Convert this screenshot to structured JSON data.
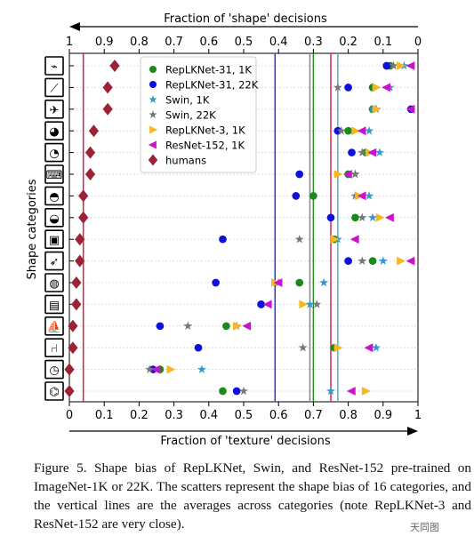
{
  "chart_data": {
    "type": "scatter",
    "top_axis_label": "Fraction of 'shape' decisions",
    "bottom_axis_label": "Fraction of 'texture' decisions",
    "ylabel": "Shape categories",
    "xlim": [
      0,
      1
    ],
    "top_ticks": [
      "1",
      "0.9",
      "0.8",
      "0.7",
      "0.6",
      "0.5",
      "0.4",
      "0.3",
      "0.2",
      "0.1",
      "0"
    ],
    "bottom_ticks": [
      "0",
      "0.1",
      "0.2",
      "0.3",
      "0.4",
      "0.5",
      "0.6",
      "0.7",
      "0.8",
      "0.9",
      "1"
    ],
    "categories": [
      "knife",
      "bottle",
      "airplane",
      "bear",
      "dog",
      "keyboard",
      "cat",
      "elephant",
      "oven",
      "bird",
      "car",
      "truck",
      "boat",
      "chair",
      "clock",
      "bicycle"
    ],
    "legend_position": "upper-center",
    "series": [
      {
        "name": "RepLKNet-31, 1K",
        "marker": "circle",
        "color": "#1a8a1a",
        "values": [
          0.92,
          0.87,
          0.87,
          0.8,
          0.85,
          0.8,
          0.7,
          0.82,
          0.76,
          0.87,
          0.66,
          0.55,
          0.45,
          0.76,
          0.26,
          0.44
        ]
      },
      {
        "name": "RepLKNet-31, 22K",
        "marker": "circle",
        "color": "#1010dd",
        "values": [
          0.91,
          0.8,
          0.98,
          0.77,
          0.81,
          0.66,
          0.65,
          0.75,
          0.44,
          0.8,
          0.42,
          0.55,
          0.26,
          0.37,
          0.24,
          0.48
        ]
      },
      {
        "name": "Swin, 1K",
        "marker": "star",
        "color": "#3399cc",
        "values": [
          0.96,
          0.92,
          0.87,
          0.86,
          0.89,
          0.82,
          0.86,
          0.87,
          0.77,
          0.9,
          0.73,
          0.69,
          0.48,
          0.88,
          0.38,
          0.75
        ]
      },
      {
        "name": "Swin, 22K",
        "marker": "star",
        "color": "#777777",
        "values": [
          0.93,
          0.77,
          0.88,
          0.78,
          0.84,
          0.82,
          0.82,
          0.84,
          0.66,
          0.84,
          0.6,
          0.71,
          0.34,
          0.67,
          0.23,
          0.5
        ]
      },
      {
        "name": "RepLKNet-3, 1K",
        "marker": "triangle-right",
        "color": "#f5b820",
        "values": [
          0.95,
          0.88,
          0.88,
          0.82,
          0.86,
          0.77,
          0.83,
          0.89,
          0.76,
          0.95,
          0.59,
          0.67,
          0.48,
          0.77,
          0.29,
          0.85
        ]
      },
      {
        "name": "ResNet-152, 1K",
        "marker": "triangle-left",
        "color": "#cc11cc",
        "values": [
          0.98,
          0.91,
          0.98,
          0.84,
          0.87,
          0.8,
          0.84,
          0.92,
          0.82,
          0.98,
          0.6,
          0.57,
          0.51,
          0.86,
          0.25,
          0.81
        ]
      },
      {
        "name": "humans",
        "marker": "diamond",
        "color": "#9b2335",
        "values": [
          0.13,
          0.11,
          0.11,
          0.07,
          0.06,
          0.06,
          0.04,
          0.04,
          0.03,
          0.03,
          0.02,
          0.02,
          0.01,
          0.01,
          0.0,
          0.0
        ]
      }
    ],
    "average_lines": [
      {
        "x": 0.04,
        "color": "#cc2244"
      },
      {
        "x": 0.59,
        "color": "#3333cc"
      },
      {
        "x": 0.69,
        "color": "#888888"
      },
      {
        "x": 0.7,
        "color": "#2a8a2a"
      },
      {
        "x": 0.75,
        "color": "#dd2255"
      },
      {
        "x": 0.77,
        "color": "#55aacc"
      }
    ]
  },
  "caption": "Figure 5. Shape bias of RepLKNet, Swin, and ResNet-152 pre-trained on ImageNet-1K or 22K. The scatters represent the shape bias of 16 categories, and the vertical lines are the averages across categories (note RepLKNet-3 and ResNet-152 are very close).",
  "watermark": "天同图"
}
